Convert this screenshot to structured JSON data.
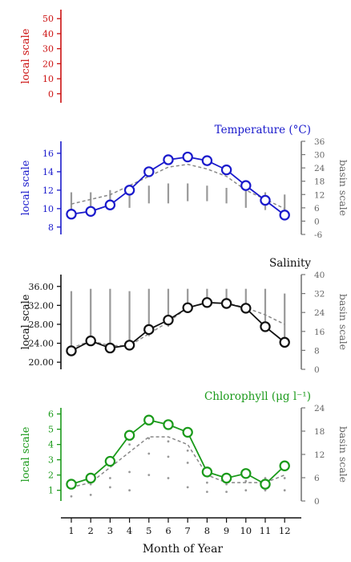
{
  "chart_data": {
    "type": "line",
    "months": [
      1,
      2,
      3,
      4,
      5,
      6,
      7,
      8,
      9,
      10,
      11,
      12
    ],
    "xlabel": "Month of Year",
    "panels": [
      {
        "id": "top",
        "title": "",
        "color": "#cc1111",
        "ylabel_left": "local scale",
        "left_ticks": [
          "0",
          "10",
          "20",
          "30",
          "40",
          "50"
        ],
        "left_ylim": [
          -6,
          56
        ],
        "has_right": false,
        "series": []
      },
      {
        "id": "temperature",
        "title": "Temperature (°C)",
        "color": "#1a1acc",
        "ylabel_left": "local scale",
        "ylabel_right": "basin scale",
        "left_ticks": [
          "8",
          "10",
          "12",
          "14",
          "16"
        ],
        "left_ylim": [
          7.2,
          17.3
        ],
        "right_ticks": [
          "-6",
          "0",
          "6",
          "12",
          "18",
          "24",
          "30",
          "36"
        ],
        "right_ylim": [
          -6,
          36
        ],
        "local_series": [
          9.4,
          9.7,
          10.4,
          12.0,
          14.0,
          15.3,
          15.6,
          15.2,
          14.2,
          12.5,
          10.9,
          9.3
        ],
        "basin_mean": [
          10.5,
          11.0,
          11.5,
          12.5,
          13.5,
          14.5,
          14.8,
          14.3,
          13.5,
          12.0,
          11.0,
          10.0
        ],
        "basin_range": [
          [
            4,
            13
          ],
          [
            4,
            13
          ],
          [
            5,
            14
          ],
          [
            6,
            15
          ],
          [
            8,
            16
          ],
          [
            8,
            17
          ],
          [
            9,
            17
          ],
          [
            9,
            16
          ],
          [
            8,
            15
          ],
          [
            6,
            14
          ],
          [
            5,
            13
          ],
          [
            4,
            12
          ]
        ]
      },
      {
        "id": "salinity",
        "title": "Salinity",
        "color": "#111111",
        "ylabel_left": "local scale",
        "ylabel_right": "basin scale",
        "left_ticks": [
          "20.00",
          "24.00",
          "28.00",
          "32.00",
          "36.00"
        ],
        "left_ylim": [
          18.5,
          38.5
        ],
        "right_ticks": [
          "0",
          "8",
          "16",
          "24",
          "32",
          "40"
        ],
        "right_ylim": [
          0,
          40
        ],
        "local_series": [
          22.4,
          24.5,
          23.0,
          23.6,
          26.9,
          28.9,
          31.5,
          32.6,
          32.4,
          31.4,
          27.5,
          24.2
        ],
        "basin_mean": [
          23.0,
          24.5,
          23.5,
          23.5,
          26.0,
          28.5,
          31.5,
          32.5,
          32.5,
          31.5,
          30.0,
          28.0
        ],
        "basin_range": [
          [
            10,
            33
          ],
          [
            11,
            34
          ],
          [
            11,
            34
          ],
          [
            12,
            33
          ],
          [
            14,
            34
          ],
          [
            18,
            34
          ],
          [
            26,
            34
          ],
          [
            27,
            34
          ],
          [
            28,
            34
          ],
          [
            27,
            34
          ],
          [
            20,
            34
          ],
          [
            12,
            32
          ]
        ]
      },
      {
        "id": "chlorophyll",
        "title": "Chlorophyll (μg l⁻¹)",
        "color": "#1a9a1a",
        "ylabel_left": "local scale",
        "ylabel_right": "basin scale",
        "left_ticks": [
          "1",
          "2",
          "3",
          "4",
          "5",
          "6"
        ],
        "left_ylim": [
          0.3,
          6.4
        ],
        "right_ticks": [
          "0",
          "6",
          "12",
          "18",
          "24"
        ],
        "right_ylim": [
          0,
          24
        ],
        "local_series": [
          1.4,
          1.8,
          2.9,
          4.6,
          5.6,
          5.3,
          4.8,
          2.2,
          1.8,
          2.1,
          1.4,
          2.6
        ],
        "basin_mean": [
          1.2,
          1.5,
          2.5,
          3.5,
          4.5,
          4.5,
          4.0,
          2.0,
          1.5,
          1.5,
          1.5,
          2.0
        ],
        "basin_dots": [
          [
            0.6,
            1.2,
            1.5
          ],
          [
            0.7,
            1.4,
            1.8
          ],
          [
            1.2,
            1.8,
            2.7
          ],
          [
            1.0,
            2.2,
            4.0
          ],
          [
            2.0,
            3.4,
            4.4
          ],
          [
            1.8,
            3.2,
            4.2
          ],
          [
            1.2,
            2.8,
            3.6
          ],
          [
            0.9,
            1.5,
            2.0
          ],
          [
            0.9,
            1.4,
            1.8
          ],
          [
            1.0,
            1.6,
            2.3
          ],
          [
            1.0,
            1.4,
            1.8
          ],
          [
            1.0,
            1.8,
            2.4
          ]
        ]
      }
    ]
  }
}
